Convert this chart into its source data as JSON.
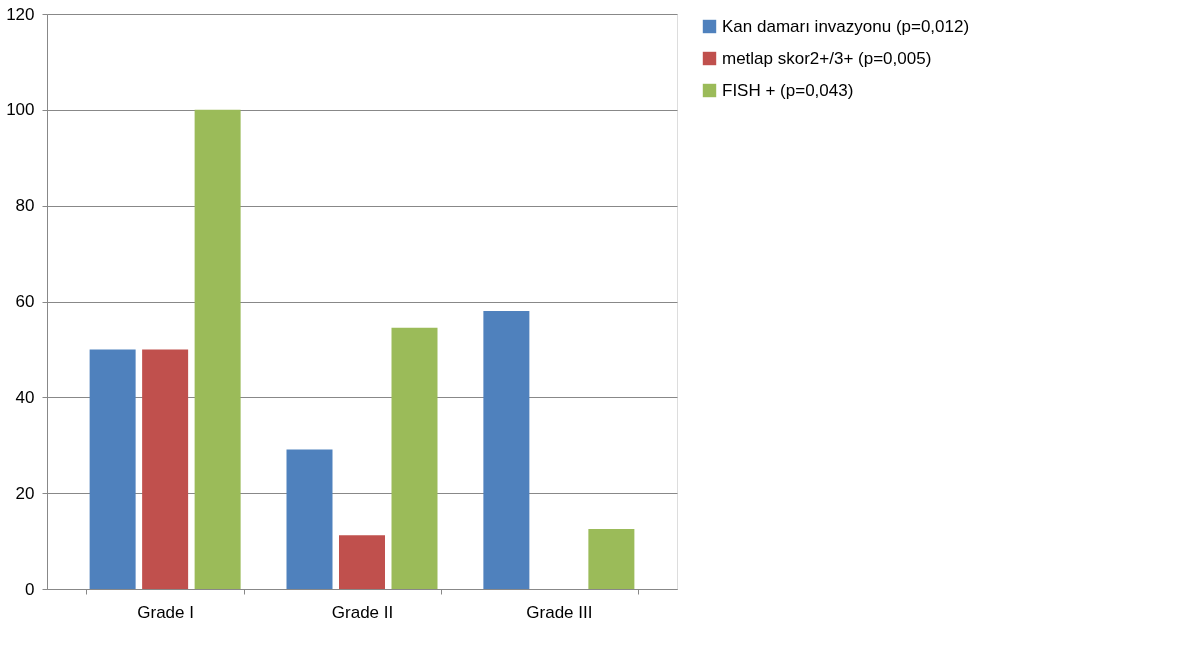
{
  "chart_data": {
    "type": "bar",
    "categories": [
      "Grade I",
      "Grade II",
      "Grade III"
    ],
    "series": [
      {
        "name": "Kan damarı invazyonu (p=0,012)",
        "color": "#4f81bd",
        "values": [
          50,
          29.1,
          58
        ]
      },
      {
        "name": "metlap skor2+/3+ (p=0,005)",
        "color": "#c0504d",
        "values": [
          50,
          11.2,
          0
        ]
      },
      {
        "name": "FISH + (p=0,043)",
        "color": "#9bbb59",
        "values": [
          100,
          54.5,
          12.5
        ]
      }
    ],
    "ylim": [
      0,
      120
    ],
    "yticks": [
      0,
      20,
      40,
      60,
      80,
      100,
      120
    ],
    "grid": "y",
    "legend": "right"
  }
}
